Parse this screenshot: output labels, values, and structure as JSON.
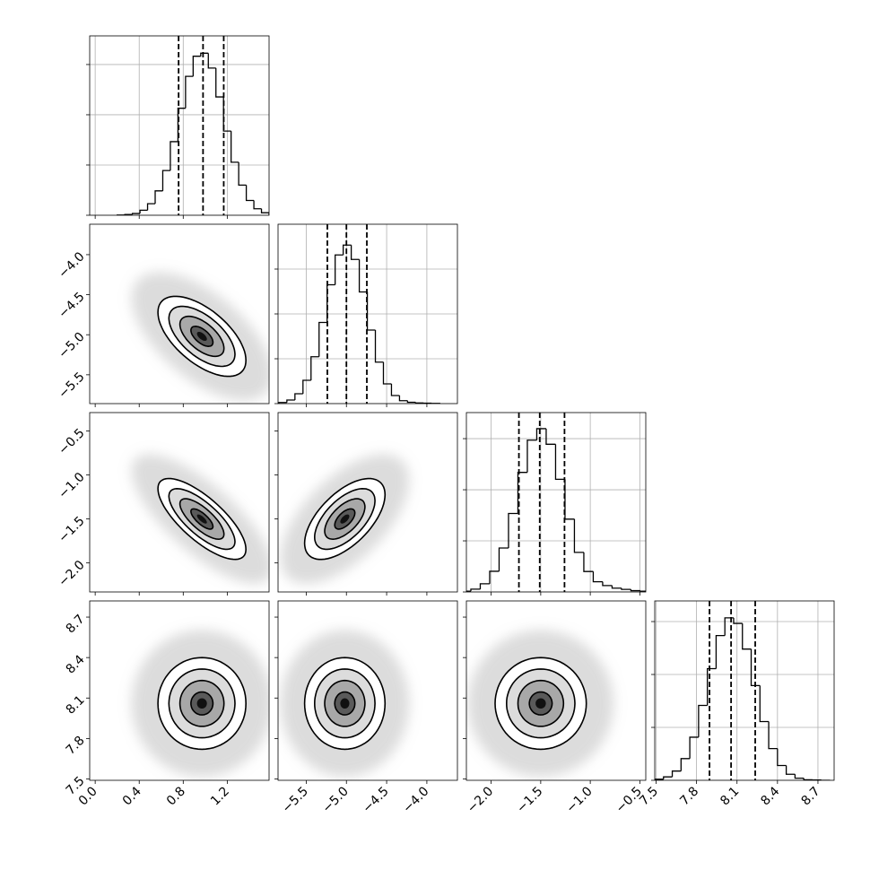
{
  "chart_data": [
    {
      "type": "histogram",
      "color": "#000000",
      "grid": true,
      "bins": [
        0.2,
        0.269,
        0.338,
        0.407,
        0.476,
        0.545,
        0.614,
        0.683,
        0.752,
        0.821,
        0.89,
        0.959,
        1.028,
        1.097,
        1.166,
        1.235,
        1.304,
        1.373,
        1.442,
        1.511,
        1.58
      ],
      "values": [
        1,
        3,
        7,
        20,
        46,
        97,
        178,
        293,
        426,
        553,
        633,
        645,
        586,
        471,
        335,
        211,
        120,
        59,
        26,
        10
      ],
      "quantiles": [
        0.758,
        0.98,
        1.168
      ],
      "xlim": [
        -0.05,
        1.58
      ],
      "xticks": [
        {
          "value": 0,
          "label": "0.0"
        },
        0.4,
        0.8,
        1.2
      ],
      "ylim": [
        0,
        714
      ],
      "yticks": [
        0,
        200,
        400,
        600
      ]
    },
    {
      "type": "contour",
      "color": "#000000",
      "grid": false,
      "mean": [
        0.97,
        -5.02
      ],
      "std": [
        0.2,
        0.25
      ],
      "corr": -0.6,
      "levels": [
        2,
        1.5,
        1,
        0.5
      ],
      "xlim": [
        -0.05,
        1.58
      ],
      "xticks": [
        {
          "value": 0,
          "label": "0.0"
        },
        0.4,
        0.8,
        1.2
      ],
      "ylim": [
        -5.86,
        -3.62
      ],
      "yticks": [
        {
          "value": -4.0,
          "label": "−4.0"
        },
        {
          "value": -4.5,
          "label": "−4.5"
        },
        {
          "value": -5.0,
          "label": "−5.0"
        },
        {
          "value": -5.5,
          "label": "−5.5"
        }
      ]
    },
    {
      "type": "histogram",
      "color": "#000000",
      "grid": true,
      "bins": [
        -5.84,
        -5.74,
        -5.64,
        -5.54,
        -5.44,
        -5.34,
        -5.24,
        -5.14,
        -5.04,
        -4.94,
        -4.84,
        -4.74,
        -4.64,
        -4.54,
        -4.44,
        -4.34,
        -4.24,
        -4.14,
        -4.04,
        -3.94,
        -3.84
      ],
      "values": [
        5,
        16,
        44,
        104,
        209,
        362,
        530,
        663,
        707,
        643,
        498,
        328,
        185,
        88,
        36,
        13,
        6,
        3,
        2,
        1
      ],
      "quantiles": [
        -5.237,
        -5.0,
        -4.746
      ],
      "xlim": [
        -5.85,
        -3.62
      ],
      "xticks": [
        {
          "value": -5.5,
          "label": "−5.5"
        },
        {
          "value": -5.0,
          "label": "−5.0"
        },
        {
          "value": -4.5,
          "label": "−4.5"
        },
        {
          "value": -4.0,
          "label": "−4.0"
        }
      ],
      "ylim": [
        0,
        800
      ],
      "yticks": [
        0,
        200,
        400,
        600
      ]
    },
    {
      "type": "contour",
      "color": "#000000",
      "grid": false,
      "mean": [
        0.97,
        -1.5
      ],
      "std": [
        0.2,
        0.23
      ],
      "corr": -0.75,
      "levels": [
        2,
        1.5,
        1,
        0.5
      ],
      "xlim": [
        -0.05,
        1.58
      ],
      "xticks": [
        {
          "value": 0,
          "label": "0.0"
        },
        0.4,
        0.8,
        1.2
      ],
      "ylim": [
        -2.33,
        -0.29
      ],
      "yticks": [
        {
          "value": -0.5,
          "label": "−0.5"
        },
        {
          "value": -1.0,
          "label": "−1.0"
        },
        {
          "value": -1.5,
          "label": "−1.5"
        },
        {
          "value": -2.0,
          "label": "−2.0"
        }
      ]
    },
    {
      "type": "contour",
      "color": "#000000",
      "grid": false,
      "mean": [
        -5.02,
        -1.5
      ],
      "std": [
        0.25,
        0.23
      ],
      "corr": 0.6,
      "levels": [
        2,
        1.5,
        1,
        0.5
      ],
      "xlim": [
        -5.85,
        -3.62
      ],
      "xticks": [
        {
          "value": -5.5,
          "label": "−5.5"
        },
        {
          "value": -5.0,
          "label": "−5.0"
        },
        {
          "value": -4.5,
          "label": "−4.5"
        },
        {
          "value": -4.0,
          "label": "−4.0"
        }
      ],
      "ylim": [
        -2.33,
        -0.29
      ],
      "yticks": [
        {
          "value": -0.5,
          "label": "−0.5"
        },
        {
          "value": -1.0,
          "label": "−1.0"
        },
        {
          "value": -1.5,
          "label": "−1.5"
        },
        {
          "value": -2.0,
          "label": "−2.0"
        }
      ]
    },
    {
      "type": "histogram",
      "color": "#000000",
      "grid": true,
      "bins": [
        -2.3,
        -2.205,
        -2.11,
        -2.015,
        -1.92,
        -1.825,
        -1.73,
        -1.635,
        -1.54,
        -1.445,
        -1.35,
        -1.255,
        -1.16,
        -1.065,
        -0.97,
        -0.875,
        -0.78,
        -0.685,
        -0.59,
        -0.495,
        -0.4
      ],
      "values": [
        3,
        11,
        32,
        81,
        172,
        307,
        468,
        594,
        639,
        578,
        441,
        285,
        155,
        80,
        40,
        25,
        15,
        10,
        5,
        3
      ],
      "quantiles": [
        -1.72,
        -1.51,
        -1.26
      ],
      "xlim": [
        -2.25,
        -0.44
      ],
      "xticks": [
        {
          "value": -2.0,
          "label": "−2.0"
        },
        {
          "value": -1.5,
          "label": "−1.5"
        },
        {
          "value": -1.0,
          "label": "−1.0"
        },
        {
          "value": -0.5,
          "label": "−0.5"
        }
      ],
      "ylim": [
        0,
        702
      ],
      "yticks": [
        0,
        200,
        400,
        600
      ]
    },
    {
      "type": "contour",
      "color": "#000000",
      "grid": false,
      "mean": [
        0.97,
        8.06
      ],
      "std": [
        0.2,
        0.17
      ],
      "corr": 0.0,
      "levels": [
        2,
        1.5,
        1,
        0.5
      ],
      "xlim": [
        -0.05,
        1.58
      ],
      "xticks": [
        {
          "value": 0,
          "label": "0.0"
        },
        0.4,
        0.8,
        1.2
      ],
      "ylim": [
        7.49,
        8.82
      ],
      "yticks": [
        8.7,
        8.4,
        8.1,
        7.8,
        7.5
      ]
    },
    {
      "type": "contour",
      "color": "#000000",
      "grid": false,
      "mean": [
        -5.02,
        8.06
      ],
      "std": [
        0.25,
        0.17
      ],
      "corr": 0.0,
      "levels": [
        2,
        1.5,
        1,
        0.5
      ],
      "xlim": [
        -5.85,
        -3.62
      ],
      "xticks": [
        {
          "value": -5.5,
          "label": "−5.5"
        },
        {
          "value": -5.0,
          "label": "−5.0"
        },
        {
          "value": -4.5,
          "label": "−4.5"
        },
        {
          "value": -4.0,
          "label": "−4.0"
        }
      ],
      "ylim": [
        7.49,
        8.82
      ],
      "yticks": [
        8.7,
        8.4,
        8.1,
        7.8,
        7.5
      ]
    },
    {
      "type": "contour",
      "color": "#000000",
      "grid": false,
      "mean": [
        -1.5,
        8.06
      ],
      "std": [
        0.23,
        0.17
      ],
      "corr": 0.0,
      "levels": [
        2,
        1.5,
        1,
        0.5
      ],
      "xlim": [
        -2.25,
        -0.44
      ],
      "xticks": [
        {
          "value": -2.0,
          "label": "−2.0"
        },
        {
          "value": -1.5,
          "label": "−1.5"
        },
        {
          "value": -1.0,
          "label": "−1.0"
        },
        {
          "value": -0.5,
          "label": "−0.5"
        }
      ],
      "ylim": [
        7.49,
        8.82
      ],
      "yticks": [
        8.7,
        8.4,
        8.1,
        7.8,
        7.5
      ]
    },
    {
      "type": "histogram",
      "color": "#000000",
      "grid": true,
      "bins": [
        7.49,
        7.555,
        7.62,
        7.685,
        7.75,
        7.815,
        7.88,
        7.945,
        8.01,
        8.075,
        8.14,
        8.205,
        8.27,
        8.335,
        8.4,
        8.465,
        8.53,
        8.595,
        8.66,
        8.725,
        8.79
      ],
      "values": [
        4,
        13,
        35,
        82,
        163,
        283,
        422,
        547,
        614,
        593,
        496,
        358,
        222,
        120,
        56,
        23,
        8,
        2,
        1,
        0
      ],
      "quantiles": [
        7.896,
        8.056,
        8.235
      ],
      "xlim": [
        7.49,
        8.82
      ],
      "xticks": [
        7.5,
        7.8,
        8.1,
        8.4,
        8.7
      ],
      "ylim": [
        0,
        678
      ],
      "yticks": [
        0,
        200,
        400,
        600
      ]
    }
  ]
}
